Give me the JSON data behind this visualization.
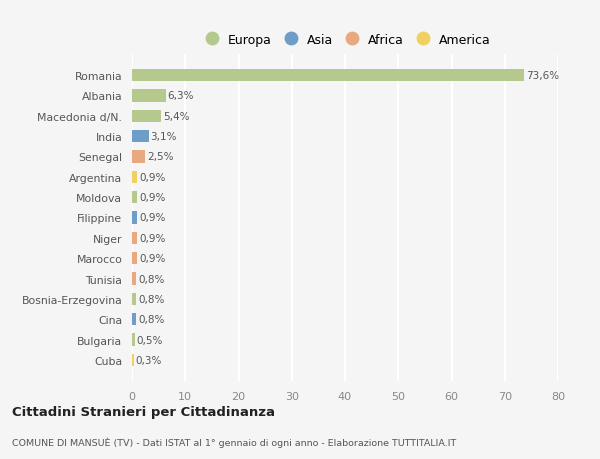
{
  "countries": [
    "Romania",
    "Albania",
    "Macedonia d/N.",
    "India",
    "Senegal",
    "Argentina",
    "Moldova",
    "Filippine",
    "Niger",
    "Marocco",
    "Tunisia",
    "Bosnia-Erzegovina",
    "Cina",
    "Bulgaria",
    "Cuba"
  ],
  "values": [
    73.6,
    6.3,
    5.4,
    3.1,
    2.5,
    0.9,
    0.9,
    0.9,
    0.9,
    0.9,
    0.8,
    0.8,
    0.8,
    0.5,
    0.3
  ],
  "labels": [
    "73,6%",
    "6,3%",
    "5,4%",
    "3,1%",
    "2,5%",
    "0,9%",
    "0,9%",
    "0,9%",
    "0,9%",
    "0,9%",
    "0,8%",
    "0,8%",
    "0,8%",
    "0,5%",
    "0,3%"
  ],
  "continents": [
    "Europa",
    "Europa",
    "Europa",
    "Asia",
    "Africa",
    "America",
    "Europa",
    "Asia",
    "Africa",
    "Africa",
    "Africa",
    "Europa",
    "Asia",
    "Europa",
    "America"
  ],
  "colors": {
    "Europa": "#b5c98e",
    "Asia": "#6e9ec7",
    "Africa": "#e8a97e",
    "America": "#f0d060"
  },
  "bg_color": "#f5f5f5",
  "grid_color": "#ffffff",
  "title_main": "Cittadini Stranieri per Cittadinanza",
  "title_sub": "COMUNE DI MANSUÈ (TV) - Dati ISTAT al 1° gennaio di ogni anno - Elaborazione TUTTITALIA.IT",
  "xlim": [
    0,
    80
  ],
  "xticks": [
    0,
    10,
    20,
    30,
    40,
    50,
    60,
    70,
    80
  ],
  "legend_order": [
    "Europa",
    "Asia",
    "Africa",
    "America"
  ]
}
